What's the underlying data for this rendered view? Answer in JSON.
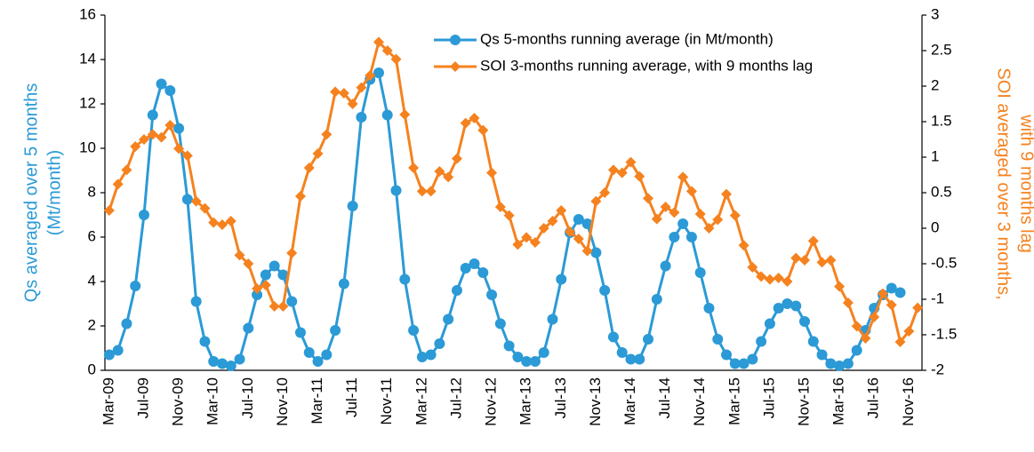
{
  "chart_data": {
    "type": "line",
    "categories": [
      "Mar-09",
      null,
      null,
      null,
      "Jul-09",
      null,
      null,
      null,
      "Nov-09",
      null,
      null,
      null,
      "Mar-10",
      null,
      null,
      null,
      "Jul-10",
      null,
      null,
      null,
      "Nov-10",
      null,
      null,
      null,
      "Mar-11",
      null,
      null,
      null,
      "Jul-11",
      null,
      null,
      null,
      "Nov-11",
      null,
      null,
      null,
      "Mar-12",
      null,
      null,
      null,
      "Jul-12",
      null,
      null,
      null,
      "Nov-12",
      null,
      null,
      null,
      "Mar-13",
      null,
      null,
      null,
      "Jul-13",
      null,
      null,
      null,
      "Nov-13",
      null,
      null,
      null,
      "Mar-14",
      null,
      null,
      null,
      "Jul-14",
      null,
      null,
      null,
      "Nov-14",
      null,
      null,
      null,
      "Mar-15",
      null,
      null,
      null,
      "Jul-15",
      null,
      null,
      null,
      "Nov-15",
      null,
      null,
      null,
      "Mar-16",
      null,
      null,
      null,
      "Jul-16",
      null,
      null,
      null,
      "Nov-16",
      null
    ],
    "y_label": [
      "Qs averaged over 5 months",
      "(Mt/month)"
    ],
    "y2_label": [
      "SOI averaged over 3 months,",
      "with 9 months lag"
    ],
    "ylim": [
      0,
      16
    ],
    "yticks": [
      0,
      2,
      4,
      6,
      8,
      10,
      12,
      14,
      16
    ],
    "y2lim": [
      -2,
      3
    ],
    "y2ticks": [
      -2,
      -1.5,
      -1,
      -0.5,
      0,
      0.5,
      1,
      1.5,
      2,
      2.5,
      3
    ],
    "y_label_color": "#2b9ad6",
    "y2_label_color": "#f5821f",
    "series": [
      {
        "name": "Qs 5-months running average (in Mt/month)",
        "color": "#2b9ad6",
        "marker": "circle",
        "values": [
          0.7,
          0.9,
          2.1,
          3.8,
          7.0,
          11.5,
          12.9,
          12.6,
          10.9,
          7.7,
          3.1,
          1.3,
          0.4,
          0.3,
          0.2,
          0.5,
          1.9,
          3.4,
          4.3,
          4.7,
          4.3,
          3.1,
          1.7,
          0.8,
          0.4,
          0.7,
          1.8,
          3.9,
          7.4,
          11.4,
          13.1,
          13.4,
          11.5,
          8.1,
          4.1,
          1.8,
          0.6,
          0.7,
          1.2,
          2.3,
          3.6,
          4.6,
          4.8,
          4.4,
          3.4,
          2.1,
          1.1,
          0.6,
          0.4,
          0.4,
          0.8,
          2.3,
          4.1,
          6.2,
          6.8,
          6.6,
          5.3,
          3.6,
          1.5,
          0.8,
          0.5,
          0.5,
          1.4,
          3.2,
          4.7,
          6.0,
          6.6,
          6.0,
          4.4,
          2.8,
          1.4,
          0.7,
          0.3,
          0.3,
          0.5,
          1.3,
          2.1,
          2.8,
          3.0,
          2.9,
          2.2,
          1.3,
          0.7,
          0.3,
          0.2,
          0.3,
          0.9,
          1.8,
          2.8,
          3.4,
          3.7,
          3.5,
          null,
          null
        ]
      },
      {
        "name": "SOI 3-months running average, with 9 months lag",
        "color": "#f5821f",
        "marker": "diamond",
        "axis": "y2",
        "values": [
          0.25,
          0.62,
          0.82,
          1.15,
          1.25,
          1.32,
          1.28,
          1.45,
          1.12,
          1.02,
          0.38,
          0.28,
          0.08,
          0.05,
          0.1,
          -0.38,
          -0.5,
          -0.85,
          -0.8,
          -1.1,
          -1.1,
          -0.35,
          0.45,
          0.85,
          1.05,
          1.32,
          1.92,
          1.9,
          1.75,
          1.98,
          2.15,
          2.62,
          2.5,
          2.38,
          1.6,
          0.85,
          0.52,
          0.52,
          0.8,
          0.72,
          0.98,
          1.48,
          1.55,
          1.38,
          0.78,
          0.3,
          0.18,
          -0.23,
          -0.13,
          -0.2,
          0.0,
          0.1,
          0.25,
          -0.05,
          -0.15,
          -0.32,
          0.38,
          0.5,
          0.82,
          0.78,
          0.93,
          0.73,
          0.42,
          0.13,
          0.3,
          0.22,
          0.72,
          0.52,
          0.2,
          0.0,
          0.12,
          0.48,
          0.18,
          -0.24,
          -0.55,
          -0.68,
          -0.72,
          -0.7,
          -0.75,
          -0.42,
          -0.45,
          -0.18,
          -0.48,
          -0.45,
          -0.82,
          -1.05,
          -1.38,
          -1.55,
          -1.25,
          -0.92,
          -1.08,
          -1.6,
          -1.45,
          -1.12
        ]
      }
    ]
  }
}
